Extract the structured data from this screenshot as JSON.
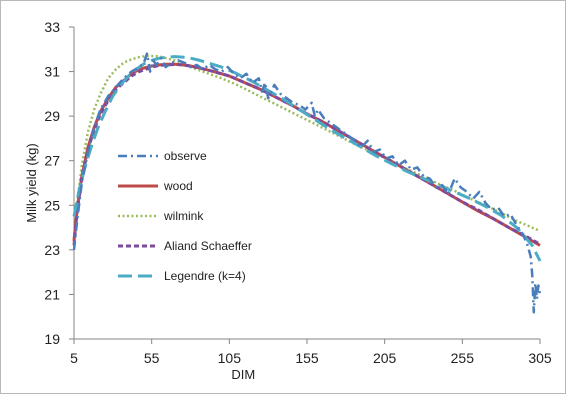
{
  "chart_data": {
    "type": "line",
    "title": "",
    "xlabel": "DIM",
    "ylabel": "Milk yield (kg)",
    "xlim": [
      5,
      305
    ],
    "ylim": [
      19,
      33
    ],
    "x_ticks": [
      "5",
      "55",
      "105",
      "155",
      "205",
      "255",
      "305"
    ],
    "y_ticks": [
      "19",
      "21",
      "23",
      "25",
      "27",
      "29",
      "31",
      "33"
    ],
    "grid": false,
    "legend_position": "center-left",
    "series": [
      {
        "name": "observe",
        "color": "#4a7ebb",
        "dash": "dash-dot",
        "x": [
          5,
          7,
          10,
          14,
          18,
          22,
          27,
          32,
          37,
          42,
          47,
          50,
          52,
          54,
          56,
          58,
          61,
          64,
          68,
          72,
          76,
          80,
          84,
          88,
          92,
          96,
          100,
          104,
          108,
          112,
          116,
          120,
          124,
          126,
          128,
          130,
          134,
          138,
          142,
          146,
          150,
          154,
          158,
          160,
          162,
          166,
          170,
          174,
          178,
          182,
          186,
          190,
          194,
          198,
          202,
          206,
          210,
          214,
          218,
          222,
          226,
          230,
          234,
          238,
          242,
          246,
          250,
          254,
          258,
          262,
          266,
          270,
          274,
          278,
          282,
          286,
          290,
          294,
          297,
          299,
          300,
          301,
          302,
          303,
          304,
          305
        ],
        "values": [
          23.0,
          24.3,
          26.0,
          27.4,
          28.5,
          29.3,
          29.9,
          30.3,
          30.7,
          31.0,
          31.2,
          31.4,
          31.8,
          31.0,
          31.5,
          31.3,
          31.6,
          31.2,
          31.4,
          31.5,
          31.4,
          31.2,
          31.3,
          31.1,
          31.3,
          31.1,
          31.0,
          31.2,
          30.9,
          30.7,
          30.9,
          30.5,
          30.7,
          30.1,
          30.5,
          29.8,
          30.4,
          30.0,
          29.8,
          29.6,
          29.5,
          29.3,
          29.6,
          29.0,
          29.3,
          28.9,
          28.7,
          28.5,
          28.3,
          28.1,
          27.9,
          27.6,
          27.9,
          27.4,
          27.5,
          27.1,
          27.2,
          26.8,
          27.0,
          26.6,
          26.7,
          26.3,
          26.2,
          25.8,
          25.9,
          25.5,
          26.2,
          25.8,
          25.6,
          25.3,
          25.6,
          25.1,
          24.8,
          24.9,
          24.5,
          24.6,
          24.1,
          23.7,
          23.2,
          22.7,
          21.9,
          20.2,
          21.5,
          20.8,
          21.4,
          21.0
        ]
      },
      {
        "name": "wood",
        "color": "#be4b48",
        "dash": "solid",
        "x": [
          5,
          7,
          10,
          14,
          18,
          22,
          27,
          32,
          37,
          42,
          47,
          55,
          60,
          65,
          70,
          75,
          80,
          85,
          95,
          105,
          115,
          125,
          135,
          145,
          155,
          165,
          175,
          185,
          195,
          205,
          215,
          225,
          235,
          245,
          255,
          265,
          275,
          285,
          295,
          305
        ],
        "values": [
          23.4,
          24.8,
          26.3,
          27.6,
          28.5,
          29.2,
          29.8,
          30.3,
          30.6,
          30.9,
          31.1,
          31.25,
          31.3,
          31.33,
          31.33,
          31.3,
          31.25,
          31.18,
          31.0,
          30.8,
          30.5,
          30.2,
          29.85,
          29.5,
          29.1,
          28.75,
          28.35,
          27.95,
          27.55,
          27.15,
          26.75,
          26.35,
          25.95,
          25.55,
          25.15,
          24.75,
          24.4,
          24.0,
          23.6,
          23.2
        ]
      },
      {
        "name": "wilmink",
        "color": "#9bbb59",
        "dash": "dot",
        "x": [
          5,
          7,
          10,
          14,
          18,
          22,
          27,
          32,
          37,
          42,
          47,
          52,
          57,
          62,
          67,
          72,
          77,
          82,
          90,
          100,
          110,
          120,
          130,
          140,
          150,
          160,
          170,
          180,
          190,
          200,
          210,
          220,
          230,
          240,
          250,
          260,
          270,
          280,
          290,
          300,
          305
        ],
        "values": [
          23.5,
          25.1,
          26.8,
          28.3,
          29.3,
          30.0,
          30.7,
          31.1,
          31.4,
          31.55,
          31.65,
          31.7,
          31.7,
          31.65,
          31.55,
          31.45,
          31.3,
          31.15,
          30.95,
          30.7,
          30.4,
          30.05,
          29.7,
          29.35,
          29.0,
          28.65,
          28.3,
          27.95,
          27.6,
          27.3,
          26.95,
          26.6,
          26.3,
          25.95,
          25.65,
          25.3,
          25.0,
          24.65,
          24.3,
          24.0,
          23.85
        ]
      },
      {
        "name": "Aliand Schaeffer",
        "color": "#7e4a9e",
        "dash": "dash",
        "x": [
          5,
          7,
          10,
          14,
          18,
          22,
          27,
          32,
          37,
          42,
          47,
          55,
          60,
          65,
          70,
          75,
          80,
          85,
          95,
          105,
          115,
          125,
          135,
          145,
          155,
          165,
          175,
          185,
          195,
          205,
          215,
          225,
          235,
          245,
          255,
          265,
          275,
          285,
          295,
          305
        ],
        "values": [
          23.2,
          24.7,
          26.2,
          27.5,
          28.4,
          29.1,
          29.7,
          30.2,
          30.5,
          30.8,
          31.0,
          31.2,
          31.28,
          31.3,
          31.32,
          31.3,
          31.25,
          31.18,
          31.0,
          30.8,
          30.5,
          30.2,
          29.85,
          29.5,
          29.1,
          28.75,
          28.35,
          27.95,
          27.55,
          27.15,
          26.75,
          26.35,
          25.95,
          25.55,
          25.15,
          24.8,
          24.4,
          24.0,
          23.65,
          23.25
        ]
      },
      {
        "name": "Legendre (k=4)",
        "color": "#4bacc6",
        "dash": "long-dash",
        "x": [
          5,
          8,
          12,
          16,
          20,
          25,
          30,
          35,
          40,
          45,
          50,
          55,
          60,
          65,
          70,
          75,
          80,
          85,
          90,
          100,
          110,
          120,
          130,
          140,
          150,
          160,
          170,
          180,
          190,
          200,
          210,
          220,
          230,
          240,
          250,
          260,
          270,
          280,
          290,
          300,
          305
        ],
        "values": [
          24.5,
          25.6,
          26.7,
          27.6,
          28.4,
          29.2,
          29.9,
          30.4,
          30.8,
          31.1,
          31.35,
          31.5,
          31.6,
          31.65,
          31.67,
          31.65,
          31.6,
          31.52,
          31.42,
          31.2,
          30.9,
          30.55,
          30.15,
          29.75,
          29.3,
          28.85,
          28.4,
          28.0,
          27.6,
          27.2,
          26.85,
          26.5,
          26.2,
          25.9,
          25.6,
          25.3,
          24.95,
          24.55,
          24.0,
          23.2,
          22.5
        ]
      }
    ]
  }
}
